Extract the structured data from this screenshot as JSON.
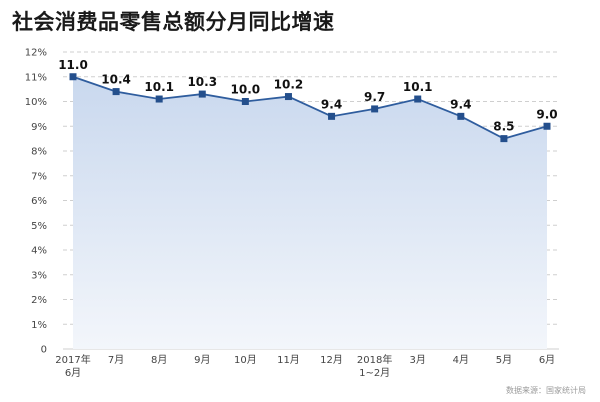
{
  "chart_data": {
    "type": "area",
    "title": "社会消费品零售总额分月同比增速",
    "categories": [
      [
        "2017年",
        "6月"
      ],
      [
        "7月"
      ],
      [
        "8月"
      ],
      [
        "9月"
      ],
      [
        "10月"
      ],
      [
        "11月"
      ],
      [
        "12月"
      ],
      [
        "2018年",
        "1~2月"
      ],
      [
        "3月"
      ],
      [
        "4月"
      ],
      [
        "5月"
      ],
      [
        "6月"
      ]
    ],
    "values": [
      11.0,
      10.4,
      10.1,
      10.3,
      10.0,
      10.2,
      9.4,
      9.7,
      10.1,
      9.4,
      8.5,
      9.0
    ],
    "value_labels": [
      "11.0",
      "10.4",
      "10.1",
      "10.3",
      "10.0",
      "10.2",
      "9.4",
      "9.7",
      "10.1",
      "9.4",
      "8.5",
      "9.0"
    ],
    "y_ticks": [
      "0",
      "1%",
      "2%",
      "3%",
      "4%",
      "5%",
      "6%",
      "7%",
      "8%",
      "9%",
      "10%",
      "11%",
      "12%"
    ],
    "ylim": [
      0,
      12
    ],
    "grid": true,
    "line_color": "#2f5d9e",
    "marker_color": "#244f8c",
    "fill_top_color": "#c9d8ee",
    "fill_bottom_color": "#f3f6fb",
    "grid_color": "#cfcfcf"
  },
  "source_text": "数据来源：国家统计局"
}
